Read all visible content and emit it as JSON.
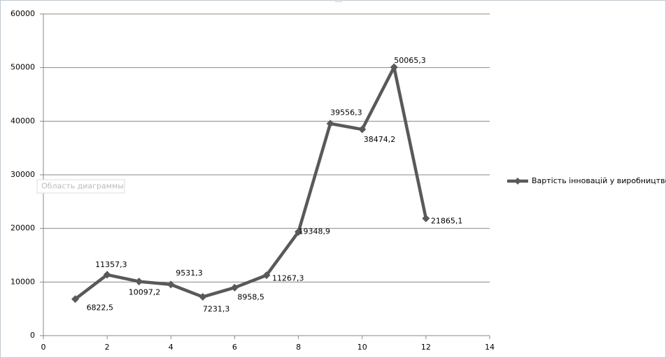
{
  "chart_data": {
    "type": "line",
    "x": [
      1,
      2,
      3,
      4,
      5,
      6,
      7,
      8,
      9,
      10,
      11,
      12
    ],
    "series": [
      {
        "name": "Вартість інновацій  у виробництво",
        "color": "#595959",
        "values": [
          6822.5,
          11357.3,
          10097.2,
          9531.3,
          7231.3,
          8958.5,
          11267.3,
          19348.9,
          39556.3,
          38474.2,
          50065.3,
          21865.1
        ],
        "value_labels": [
          "6822,5",
          "11357,3",
          "10097,2",
          "9531,3",
          "7231,3",
          "8958,5",
          "11267,3",
          "19348,9",
          "39556,3",
          "38474,2",
          "50065,3",
          "21865,1"
        ]
      }
    ],
    "xlim": [
      0,
      14
    ],
    "xticks": [
      0,
      2,
      4,
      6,
      8,
      10,
      12,
      14
    ],
    "ylim": [
      0,
      60000
    ],
    "yticks": [
      0,
      10000,
      20000,
      30000,
      40000,
      50000,
      60000
    ],
    "grid": true,
    "legend": "right"
  },
  "tooltip": "Область диаграммы"
}
